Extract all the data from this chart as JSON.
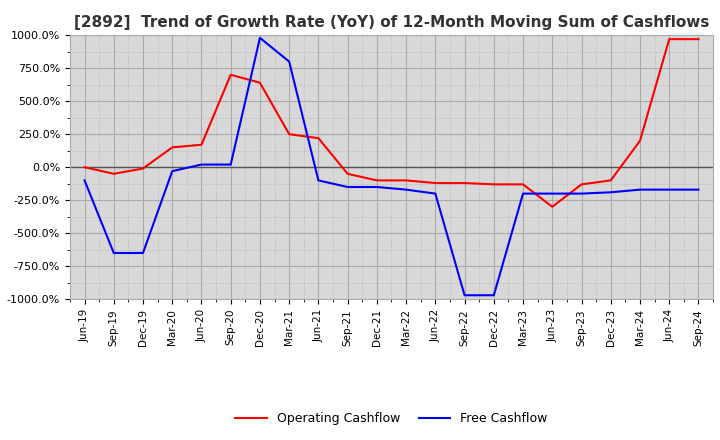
{
  "title": "[2892]  Trend of Growth Rate (YoY) of 12-Month Moving Sum of Cashflows",
  "title_fontsize": 11,
  "ylim": [
    -1000,
    1000
  ],
  "yticks": [
    -1000,
    -750,
    -500,
    -250,
    0,
    250,
    500,
    750,
    1000
  ],
  "ytick_labels": [
    "-1000.0%",
    "-750.0%",
    "-500.0%",
    "-250.0%",
    "0.0%",
    "250.0%",
    "500.0%",
    "750.0%",
    "1000.0%"
  ],
  "background_color": "#ffffff",
  "plot_bg_color": "#d8d8d8",
  "grid_color": "#ffffff",
  "grid_minor_color": "#bbbbbb",
  "operating_color": "#ff0000",
  "free_color": "#0000ff",
  "x_labels": [
    "Jun-19",
    "Sep-19",
    "Dec-19",
    "Mar-20",
    "Jun-20",
    "Sep-20",
    "Dec-20",
    "Mar-21",
    "Jun-21",
    "Sep-21",
    "Dec-21",
    "Mar-22",
    "Jun-22",
    "Sep-22",
    "Dec-22",
    "Mar-23",
    "Jun-23",
    "Sep-23",
    "Dec-23",
    "Mar-24",
    "Jun-24",
    "Sep-24"
  ],
  "operating_cashflow": [
    0,
    -50,
    -10,
    150,
    170,
    700,
    640,
    250,
    220,
    -50,
    -100,
    -100,
    -120,
    -120,
    -130,
    -130,
    -300,
    -130,
    -100,
    200,
    970,
    970
  ],
  "free_cashflow": [
    -100,
    -650,
    -650,
    -30,
    20,
    20,
    980,
    800,
    -100,
    -150,
    -150,
    -170,
    -200,
    -970,
    -970,
    -200,
    -200,
    -200,
    -190,
    -170,
    -170,
    -170
  ]
}
